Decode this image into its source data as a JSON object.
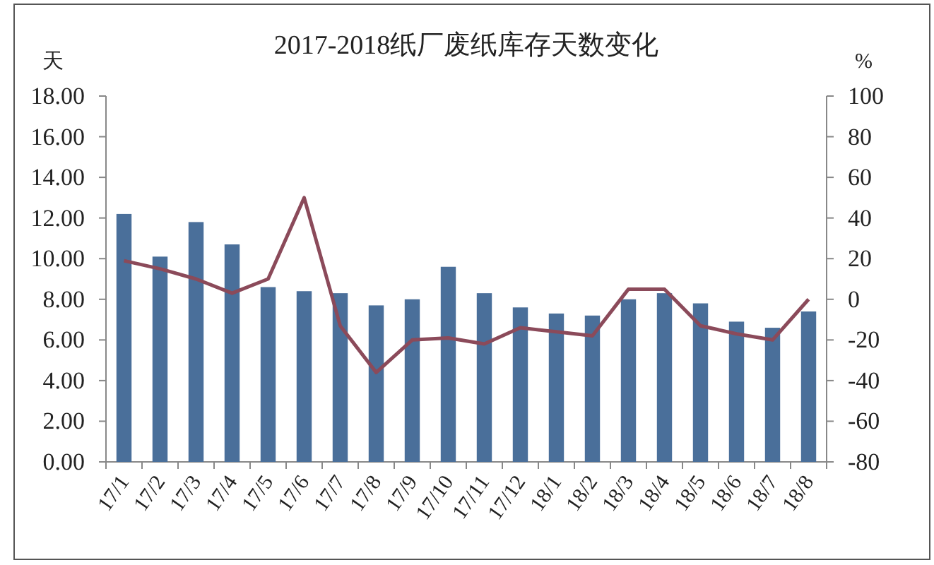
{
  "chart_data": {
    "type": "bar",
    "title": "2017-2018纸厂废纸库存天数变化",
    "ylabel": "天",
    "y2label": "%",
    "categories": [
      "17/1",
      "17/2",
      "17/3",
      "17/4",
      "17/5",
      "17/6",
      "17/7",
      "17/8",
      "17/9",
      "17/10",
      "17/11",
      "17/12",
      "18/1",
      "18/2",
      "18/3",
      "18/4",
      "18/5",
      "18/6",
      "18/7",
      "18/8"
    ],
    "series": [
      {
        "type": "bar",
        "color": "#4a6f9a",
        "values": [
          12.2,
          10.1,
          11.8,
          10.7,
          8.6,
          8.4,
          8.3,
          7.7,
          8.0,
          9.6,
          8.3,
          7.6,
          7.3,
          7.2,
          8.0,
          8.3,
          7.8,
          6.9,
          6.6,
          7.4
        ]
      },
      {
        "type": "line",
        "axis": "y2",
        "color": "#8b4a5a",
        "values": [
          19,
          15,
          10,
          3,
          10,
          50,
          -13,
          -36,
          -20,
          -19,
          -22,
          -14,
          -16,
          -18,
          5,
          5,
          -13,
          -17,
          -20,
          0
        ]
      }
    ],
    "ylim": [
      0,
      18
    ],
    "yticks": [
      {
        "value": 0,
        "label": "0.00"
      },
      {
        "value": 2,
        "label": "2.00"
      },
      {
        "value": 4,
        "label": "4.00"
      },
      {
        "value": 6,
        "label": "6.00"
      },
      {
        "value": 8,
        "label": "8.00"
      },
      {
        "value": 10,
        "label": "10.00"
      },
      {
        "value": 12,
        "label": "12.00"
      },
      {
        "value": 14,
        "label": "14.00"
      },
      {
        "value": 16,
        "label": "16.00"
      },
      {
        "value": 18,
        "label": "18.00"
      }
    ],
    "y2lim": [
      -80,
      100
    ],
    "y2ticks": [
      -80,
      -60,
      -40,
      -20,
      0,
      20,
      40,
      60,
      80,
      100
    ],
    "grid": false,
    "marker": "none",
    "line_style": "solid"
  }
}
